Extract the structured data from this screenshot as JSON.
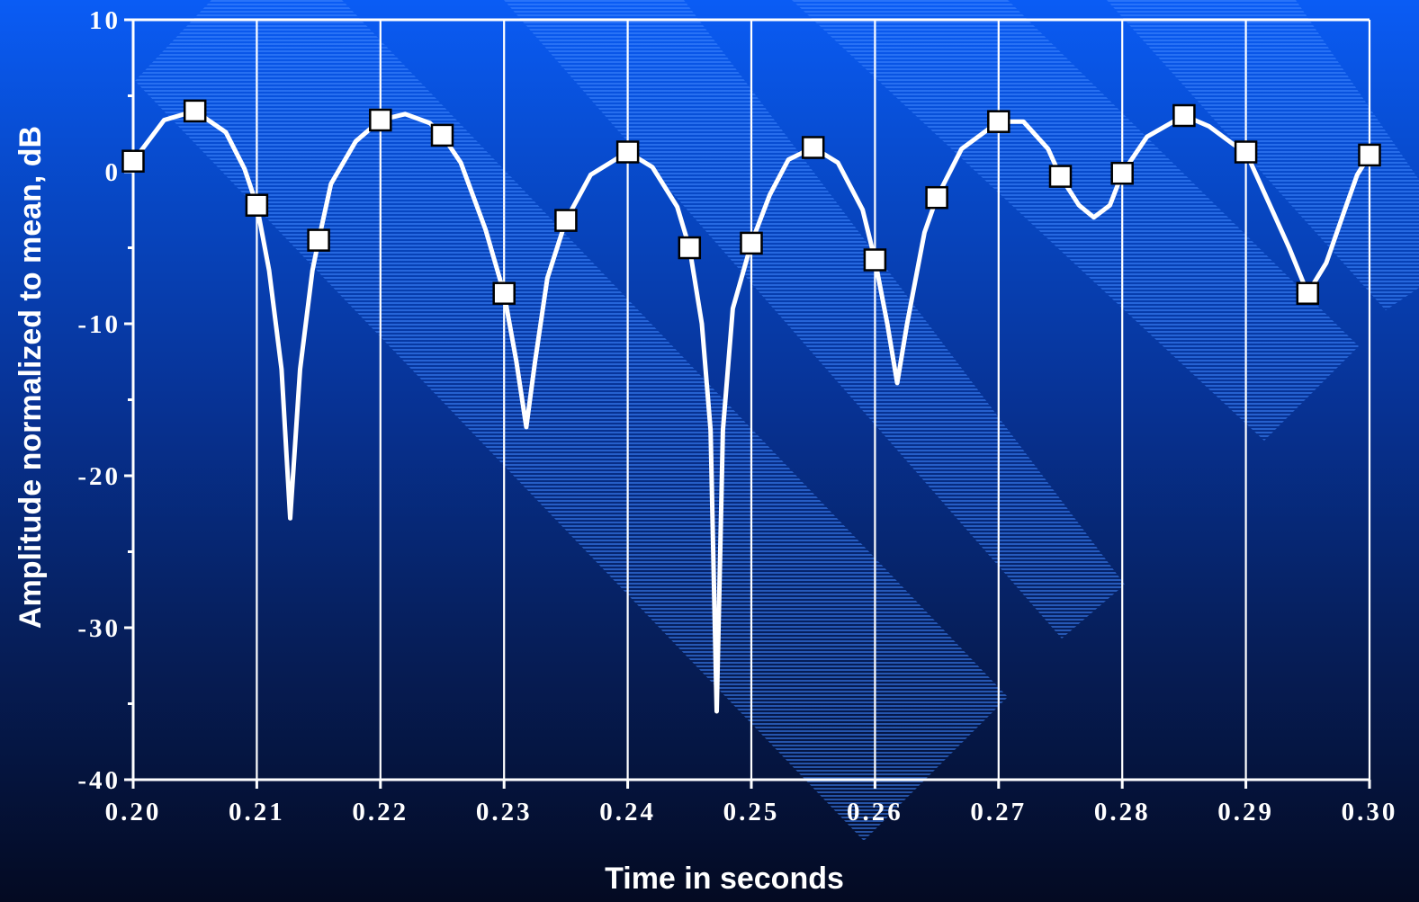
{
  "chart_data": {
    "type": "line",
    "title": "",
    "xlabel": "Time in seconds",
    "ylabel": "Amplitude normalized to mean, dB",
    "xlim": [
      0.2,
      0.3
    ],
    "ylim": [
      -40,
      10
    ],
    "x_ticks": [
      "0.20",
      "0.21",
      "0.22",
      "0.23",
      "0.24",
      "0.25",
      "0.26",
      "0.27",
      "0.28",
      "0.29",
      "0.30"
    ],
    "y_ticks": [
      "10",
      "0",
      "-10",
      "-20",
      "-30",
      "-40"
    ],
    "grid": "vertical",
    "legend": "none",
    "series": [
      {
        "marker": "square",
        "points": [
          [
            0.2,
            0.7
          ],
          [
            0.205,
            4.0
          ],
          [
            0.21,
            -2.2
          ],
          [
            0.215,
            -4.5
          ],
          [
            0.22,
            3.4
          ],
          [
            0.225,
            2.4
          ],
          [
            0.23,
            -8.0
          ],
          [
            0.235,
            -3.2
          ],
          [
            0.24,
            1.3
          ],
          [
            0.245,
            -5.0
          ],
          [
            0.25,
            -4.7
          ],
          [
            0.255,
            1.6
          ],
          [
            0.26,
            -5.8
          ],
          [
            0.265,
            -1.7
          ],
          [
            0.27,
            3.3
          ],
          [
            0.275,
            -0.3
          ],
          [
            0.28,
            -0.1
          ],
          [
            0.285,
            3.7
          ],
          [
            0.29,
            1.3
          ],
          [
            0.295,
            -8.0
          ],
          [
            0.3,
            1.1
          ]
        ],
        "curve": [
          [
            0.2,
            0.7
          ],
          [
            0.2025,
            3.4
          ],
          [
            0.205,
            4.0
          ],
          [
            0.2075,
            2.6
          ],
          [
            0.209,
            0.2
          ],
          [
            0.21,
            -2.2
          ],
          [
            0.211,
            -6.5
          ],
          [
            0.212,
            -13.0
          ],
          [
            0.2127,
            -22.8
          ],
          [
            0.2135,
            -13.0
          ],
          [
            0.2145,
            -6.5
          ],
          [
            0.215,
            -4.5
          ],
          [
            0.216,
            -0.8
          ],
          [
            0.218,
            2.0
          ],
          [
            0.22,
            3.4
          ],
          [
            0.222,
            3.8
          ],
          [
            0.224,
            3.2
          ],
          [
            0.225,
            2.4
          ],
          [
            0.2265,
            0.6
          ],
          [
            0.2285,
            -3.8
          ],
          [
            0.23,
            -8.0
          ],
          [
            0.231,
            -12.5
          ],
          [
            0.2318,
            -16.8
          ],
          [
            0.2325,
            -12.5
          ],
          [
            0.2335,
            -7.0
          ],
          [
            0.235,
            -3.2
          ],
          [
            0.237,
            -0.2
          ],
          [
            0.24,
            1.3
          ],
          [
            0.242,
            0.3
          ],
          [
            0.244,
            -2.3
          ],
          [
            0.245,
            -5.0
          ],
          [
            0.246,
            -10.0
          ],
          [
            0.2467,
            -17.0
          ],
          [
            0.2472,
            -35.5
          ],
          [
            0.2477,
            -17.0
          ],
          [
            0.2485,
            -9.0
          ],
          [
            0.25,
            -4.7
          ],
          [
            0.2515,
            -1.5
          ],
          [
            0.253,
            0.8
          ],
          [
            0.255,
            1.6
          ],
          [
            0.257,
            0.6
          ],
          [
            0.259,
            -2.5
          ],
          [
            0.26,
            -5.8
          ],
          [
            0.261,
            -10.0
          ],
          [
            0.2618,
            -13.9
          ],
          [
            0.2626,
            -10.0
          ],
          [
            0.264,
            -4.0
          ],
          [
            0.265,
            -1.7
          ],
          [
            0.267,
            1.5
          ],
          [
            0.27,
            3.3
          ],
          [
            0.272,
            3.3
          ],
          [
            0.274,
            1.5
          ],
          [
            0.275,
            -0.3
          ],
          [
            0.2765,
            -2.2
          ],
          [
            0.2777,
            -3.0
          ],
          [
            0.279,
            -2.2
          ],
          [
            0.28,
            -0.1
          ],
          [
            0.282,
            2.3
          ],
          [
            0.285,
            3.7
          ],
          [
            0.287,
            3.0
          ],
          [
            0.289,
            1.8
          ],
          [
            0.29,
            1.3
          ],
          [
            0.292,
            -2.3
          ],
          [
            0.2935,
            -5.0
          ],
          [
            0.295,
            -8.0
          ],
          [
            0.2965,
            -6.0
          ],
          [
            0.298,
            -2.5
          ],
          [
            0.299,
            -0.2
          ],
          [
            0.3,
            1.1
          ]
        ]
      }
    ]
  },
  "colors": {
    "line": "#ffffff",
    "marker_fill": "#ffffff",
    "marker_stroke": "#000000",
    "background_top": "#0a5cf5",
    "background_bottom": "#040a22",
    "stripe": "#3b82ff"
  }
}
